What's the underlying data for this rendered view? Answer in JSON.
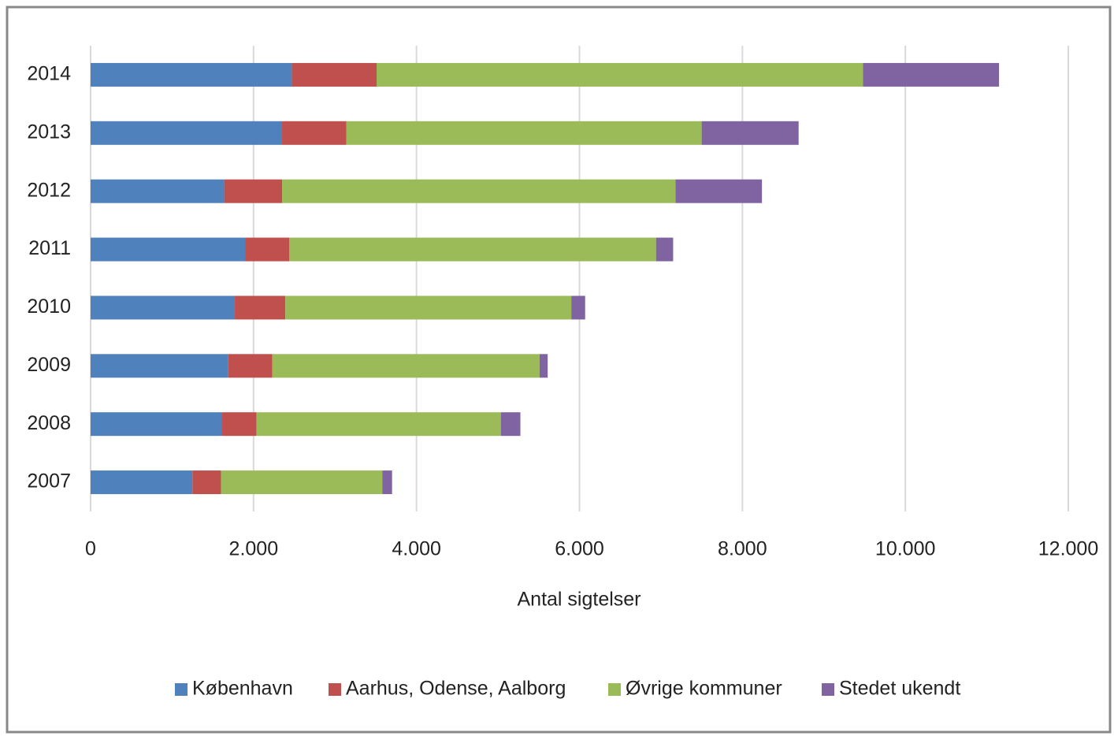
{
  "chart_data": {
    "type": "bar",
    "orientation": "horizontal",
    "stacked": true,
    "x_label": "Antal sigtelser",
    "categories": [
      "2014",
      "2013",
      "2012",
      "2011",
      "2010",
      "2009",
      "2008",
      "2007"
    ],
    "series": [
      {
        "name": "København",
        "color": "#4f81bd",
        "values": [
          2470,
          2350,
          1640,
          1900,
          1770,
          1690,
          1615,
          1250
        ]
      },
      {
        "name": "Aarhus, Odense, Aalborg",
        "color": "#c0504d",
        "values": [
          1040,
          790,
          710,
          540,
          620,
          540,
          420,
          350
        ]
      },
      {
        "name": "Øvrige kommuner",
        "color": "#9bbb59",
        "values": [
          5970,
          4360,
          4830,
          4500,
          3510,
          3280,
          3000,
          1980
        ]
      },
      {
        "name": "Stedet ukendt",
        "color": "#8064a2",
        "values": [
          1670,
          1190,
          1060,
          210,
          170,
          100,
          240,
          120
        ]
      }
    ],
    "xlim": [
      0,
      12000
    ],
    "xticks": [
      0,
      {
        "value": 2000,
        "label": "2.000"
      },
      {
        "value": 4000,
        "label": "4.000"
      },
      {
        "value": 6000,
        "label": "6.000"
      },
      {
        "value": 8000,
        "label": "8.000"
      },
      {
        "value": 10000,
        "label": "10.000"
      },
      {
        "value": 12000,
        "label": "12.000"
      }
    ],
    "grid": true,
    "legend": "bottom"
  }
}
